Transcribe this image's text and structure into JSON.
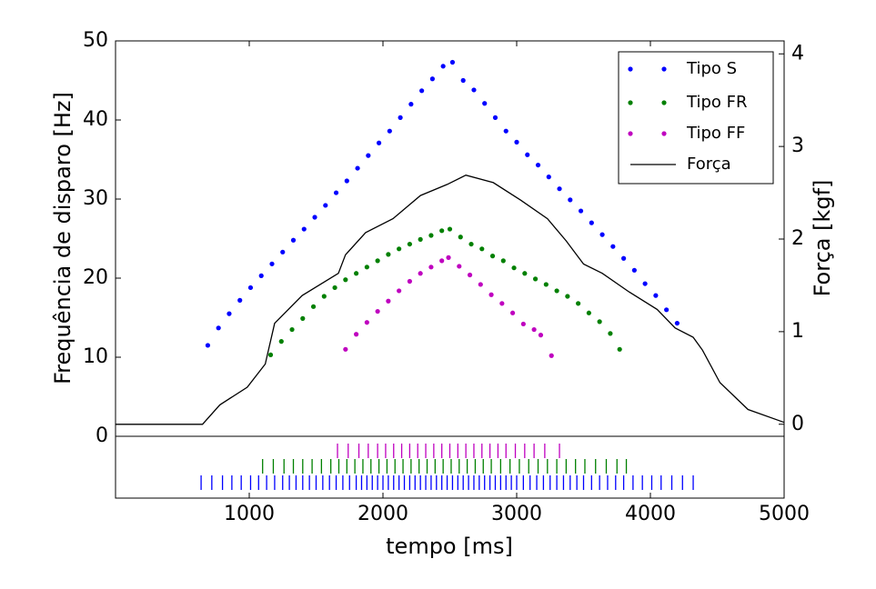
{
  "chart_data": [
    {
      "type": "scatter",
      "ylabel": "Frequência de disparo [Hz]",
      "y2label": "Força [kgf]",
      "xlim": [
        0,
        5000
      ],
      "ylim": [
        0,
        50
      ],
      "yticks": [
        0,
        10,
        20,
        30,
        40,
        50
      ],
      "y2lim": [
        -0.13,
        4.14
      ],
      "y2ticks": [
        0,
        1,
        2,
        3,
        4
      ],
      "legend": "upper right",
      "series": [
        {
          "name": "Tipo S",
          "color": "#0000ff",
          "x": [
            690,
            770,
            850,
            930,
            1010,
            1090,
            1170,
            1250,
            1330,
            1410,
            1490,
            1570,
            1650,
            1730,
            1810,
            1890,
            1970,
            2050,
            2130,
            2210,
            2290,
            2370,
            2450,
            2520,
            2600,
            2680,
            2760,
            2840,
            2920,
            3000,
            3080,
            3160,
            3240,
            3320,
            3400,
            3480,
            3560,
            3640,
            3720,
            3800,
            3880,
            3960,
            4040,
            4120,
            4200
          ],
          "values": [
            11.5,
            13.7,
            15.5,
            17.2,
            18.8,
            20.3,
            21.8,
            23.3,
            24.8,
            26.2,
            27.7,
            29.2,
            30.8,
            32.3,
            33.9,
            35.5,
            37.1,
            38.6,
            40.3,
            42.0,
            43.7,
            45.2,
            46.8,
            47.3,
            45.0,
            43.8,
            42.1,
            40.3,
            38.6,
            37.2,
            35.6,
            34.3,
            32.8,
            31.3,
            29.9,
            28.5,
            27.0,
            25.5,
            24.0,
            22.5,
            21.0,
            19.3,
            17.8,
            16.0,
            14.3
          ]
        },
        {
          "name": "Tipo FR",
          "color": "#008000",
          "x": [
            1160,
            1240,
            1320,
            1400,
            1480,
            1560,
            1640,
            1720,
            1800,
            1880,
            1960,
            2040,
            2120,
            2200,
            2280,
            2360,
            2440,
            2500,
            2580,
            2660,
            2740,
            2820,
            2900,
            2980,
            3060,
            3140,
            3220,
            3300,
            3380,
            3460,
            3540,
            3620,
            3700,
            3770
          ],
          "values": [
            10.3,
            12.0,
            13.5,
            14.9,
            16.4,
            17.7,
            18.8,
            19.8,
            20.6,
            21.4,
            22.2,
            23.0,
            23.7,
            24.3,
            24.9,
            25.4,
            26.0,
            26.2,
            25.2,
            24.3,
            23.7,
            22.8,
            22.2,
            21.3,
            20.6,
            19.9,
            19.2,
            18.4,
            17.7,
            16.8,
            15.6,
            14.5,
            13.0,
            11.0
          ]
        },
        {
          "name": "Tipo FF",
          "color": "#bf00bf",
          "x": [
            1720,
            1800,
            1880,
            1960,
            2040,
            2120,
            2200,
            2280,
            2360,
            2440,
            2490,
            2570,
            2650,
            2730,
            2810,
            2890,
            2970,
            3050,
            3130,
            3180,
            3260
          ],
          "values": [
            11.0,
            12.9,
            14.4,
            15.8,
            17.1,
            18.4,
            19.6,
            20.6,
            21.4,
            22.2,
            22.6,
            21.5,
            20.4,
            19.2,
            17.9,
            16.8,
            15.6,
            14.2,
            13.5,
            12.8,
            10.2
          ]
        },
        {
          "name": "Força",
          "color": "#000000",
          "type": "line",
          "axis": "y2",
          "x": [
            0,
            650,
            780,
            985,
            1120,
            1190,
            1395,
            1667,
            1720,
            1870,
            2075,
            2280,
            2480,
            2620,
            2825,
            3030,
            3230,
            3370,
            3500,
            3640,
            3840,
            4050,
            4185,
            4320,
            4390,
            4520,
            4730,
            5000
          ],
          "values": [
            0,
            0,
            0.21,
            0.4,
            0.65,
            1.09,
            1.39,
            1.63,
            1.83,
            2.07,
            2.22,
            2.47,
            2.59,
            2.69,
            2.61,
            2.42,
            2.22,
            1.98,
            1.73,
            1.63,
            1.43,
            1.24,
            1.04,
            0.94,
            0.8,
            0.45,
            0.16,
            0.02
          ]
        }
      ]
    },
    {
      "type": "raster",
      "xlabel": "tempo [ms]",
      "xlim": [
        0,
        5000
      ],
      "xticks": [
        1000,
        2000,
        3000,
        4000,
        5000
      ],
      "series": [
        {
          "color": "#bf00bf",
          "spikes": [
            1660,
            1740,
            1820,
            1890,
            1960,
            2020,
            2080,
            2140,
            2200,
            2260,
            2320,
            2380,
            2440,
            2500,
            2560,
            2620,
            2680,
            2740,
            2800,
            2860,
            2920,
            2990,
            3060,
            3130,
            3210,
            3320
          ]
        },
        {
          "color": "#008000",
          "spikes": [
            1100,
            1180,
            1260,
            1330,
            1400,
            1470,
            1540,
            1610,
            1670,
            1730,
            1790,
            1850,
            1910,
            1970,
            2030,
            2090,
            2150,
            2210,
            2270,
            2330,
            2390,
            2450,
            2510,
            2570,
            2630,
            2690,
            2750,
            2810,
            2880,
            2950,
            3020,
            3090,
            3160,
            3230,
            3300,
            3370,
            3440,
            3510,
            3590,
            3670,
            3750,
            3820
          ]
        },
        {
          "color": "#0000ff",
          "spikes": [
            640,
            720,
            800,
            870,
            940,
            1010,
            1070,
            1130,
            1190,
            1250,
            1300,
            1350,
            1400,
            1450,
            1500,
            1550,
            1600,
            1650,
            1700,
            1750,
            1800,
            1840,
            1880,
            1920,
            1960,
            2000,
            2040,
            2080,
            2120,
            2160,
            2200,
            2240,
            2280,
            2320,
            2360,
            2400,
            2440,
            2480,
            2520,
            2560,
            2600,
            2640,
            2680,
            2720,
            2760,
            2800,
            2840,
            2880,
            2920,
            2960,
            3000,
            3050,
            3100,
            3150,
            3200,
            3250,
            3300,
            3350,
            3400,
            3450,
            3500,
            3560,
            3620,
            3680,
            3740,
            3800,
            3870,
            3940,
            4010,
            4080,
            4160,
            4240,
            4320
          ]
        }
      ]
    }
  ]
}
